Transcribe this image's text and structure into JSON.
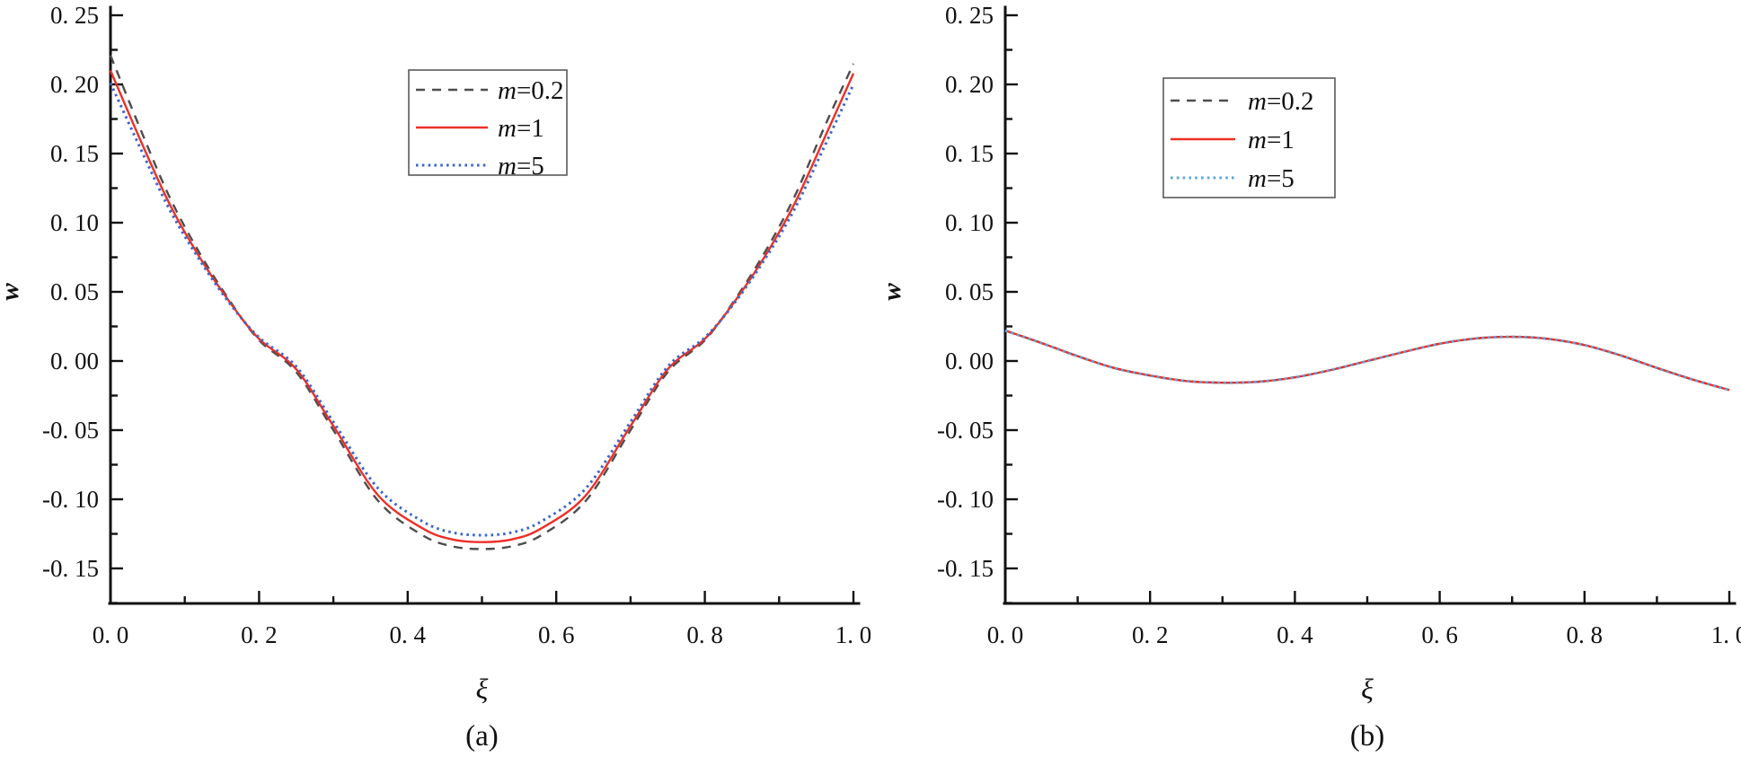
{
  "page": {
    "background": "#ffffff"
  },
  "figure": {
    "captions": [
      "(a)",
      "(b)"
    ]
  },
  "chart_data": [
    {
      "id": "a",
      "type": "line",
      "title": "",
      "caption": "(a)",
      "xlabel": "ξ",
      "ylabel": "w",
      "xlim": [
        0.0,
        1.0
      ],
      "ylim": [
        -0.175,
        0.257
      ],
      "grid": false,
      "legend_position": "upper center",
      "axis_color": "#111111",
      "x_ticks": {
        "values": [
          0.0,
          0.2,
          0.4,
          0.6,
          0.8,
          1.0
        ],
        "labels": [
          "0. 0",
          "0. 2",
          "0. 4",
          "0. 6",
          "0. 8",
          "1. 0"
        ],
        "minor_step": 0.1
      },
      "y_ticks": {
        "values": [
          0.25,
          0.2,
          0.15,
          0.1,
          0.05,
          0.0,
          -0.05,
          -0.1,
          -0.15
        ],
        "labels": [
          "0. 25",
          "0. 20",
          "0. 15",
          "0. 10",
          "0. 05",
          "0. 00",
          "-0. 05",
          "-0. 10",
          "-0. 15"
        ],
        "minor_step": 0.025
      },
      "x": [
        0,
        0.04,
        0.08,
        0.12,
        0.16,
        0.2,
        0.25,
        0.3,
        0.36,
        0.42,
        0.46,
        0.5,
        0.54,
        0.58,
        0.64,
        0.7,
        0.75,
        0.8,
        0.84,
        0.88,
        0.92,
        0.96,
        1.0
      ],
      "series": [
        {
          "name": "m=0.2",
          "line_style": "dashed",
          "color": "#4d4d4d",
          "values": [
            0.221,
            0.168,
            0.118,
            0.078,
            0.044,
            0.015,
            -0.008,
            -0.05,
            -0.101,
            -0.126,
            -0.134,
            -0.136,
            -0.134,
            -0.126,
            -0.101,
            -0.05,
            -0.008,
            0.015,
            0.044,
            0.078,
            0.118,
            0.168,
            0.215
          ]
        },
        {
          "name": "m=1",
          "line_style": "solid",
          "color": "#ee2f26",
          "values": [
            0.21,
            0.16,
            0.113,
            0.075,
            0.043,
            0.016,
            -0.006,
            -0.047,
            -0.097,
            -0.121,
            -0.129,
            -0.131,
            -0.129,
            -0.121,
            -0.097,
            -0.047,
            -0.006,
            0.016,
            0.043,
            0.075,
            0.113,
            0.16,
            0.208
          ]
        },
        {
          "name": "m=5",
          "line_style": "dotted",
          "color": "#3a67cc",
          "values": [
            0.201,
            0.154,
            0.109,
            0.073,
            0.042,
            0.017,
            -0.004,
            -0.044,
            -0.092,
            -0.116,
            -0.124,
            -0.126,
            -0.124,
            -0.116,
            -0.092,
            -0.044,
            -0.004,
            0.017,
            0.042,
            0.073,
            0.109,
            0.154,
            0.2
          ]
        }
      ]
    },
    {
      "id": "b",
      "type": "line",
      "title": "",
      "caption": "(b)",
      "xlabel": "ξ",
      "ylabel": "w",
      "xlim": [
        0.0,
        1.0
      ],
      "ylim": [
        -0.175,
        0.257
      ],
      "grid": false,
      "legend_position": "upper center",
      "axis_color": "#111111",
      "x_ticks": {
        "values": [
          0.0,
          0.2,
          0.4,
          0.6,
          0.8,
          1.0
        ],
        "labels": [
          "0. 0",
          "0. 2",
          "0. 4",
          "0. 6",
          "0. 8",
          "1. 0"
        ],
        "minor_step": 0.1
      },
      "y_ticks": {
        "values": [
          0.25,
          0.2,
          0.15,
          0.1,
          0.05,
          0.0,
          -0.05,
          -0.1,
          -0.15
        ],
        "labels": [
          "0. 25",
          "0. 20",
          "0. 15",
          "0. 10",
          "0. 05",
          "0. 00",
          "-0. 05",
          "-0. 10",
          "-0. 15"
        ],
        "minor_step": 0.025
      },
      "x": [
        0,
        0.05,
        0.1,
        0.15,
        0.2,
        0.25,
        0.3,
        0.35,
        0.4,
        0.45,
        0.5,
        0.55,
        0.6,
        0.65,
        0.7,
        0.75,
        0.8,
        0.85,
        0.9,
        0.95,
        1.0
      ],
      "series": [
        {
          "name": "m=0.2",
          "line_style": "dashed",
          "color": "#4d4d4d",
          "values": [
            0.022,
            0.013,
            0.0035,
            -0.005,
            -0.0105,
            -0.0145,
            -0.0157,
            -0.015,
            -0.0118,
            -0.0065,
            0.0,
            0.0065,
            0.0125,
            0.0163,
            0.0175,
            0.016,
            0.0115,
            0.004,
            -0.005,
            -0.0135,
            -0.021
          ]
        },
        {
          "name": "m=1",
          "line_style": "solid",
          "color": "#ee2f26",
          "values": [
            0.022,
            0.013,
            0.0035,
            -0.005,
            -0.0105,
            -0.0145,
            -0.0157,
            -0.015,
            -0.0118,
            -0.0065,
            0.0,
            0.0065,
            0.0125,
            0.0163,
            0.0175,
            0.016,
            0.0115,
            0.004,
            -0.005,
            -0.0135,
            -0.021
          ]
        },
        {
          "name": "m=5",
          "line_style": "dotted",
          "color": "#5ba6e0",
          "values": [
            0.022,
            0.013,
            0.0035,
            -0.005,
            -0.0105,
            -0.0145,
            -0.0157,
            -0.015,
            -0.0118,
            -0.0065,
            0.0,
            0.0065,
            0.0125,
            0.0163,
            0.0175,
            0.016,
            0.0115,
            0.004,
            -0.005,
            -0.0135,
            -0.021
          ]
        }
      ]
    }
  ]
}
